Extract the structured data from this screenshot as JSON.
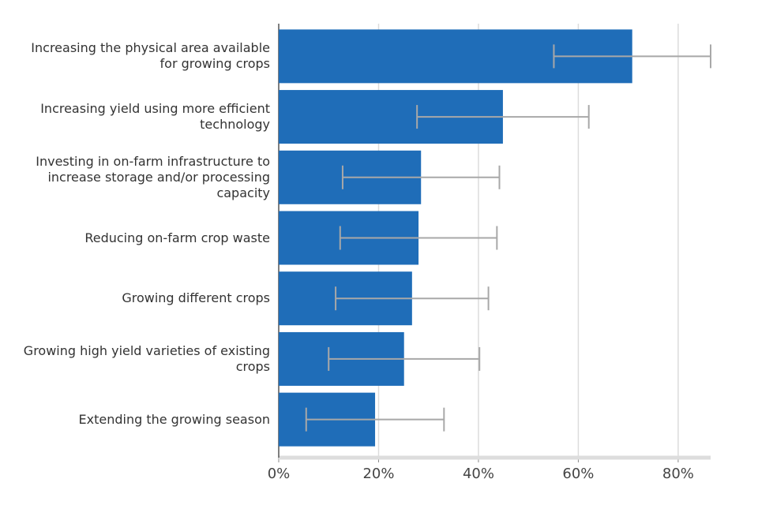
{
  "chart_data": {
    "type": "bar",
    "orientation": "horizontal",
    "categories": [
      "Increasing the physical area available for growing crops",
      "Increasing yield using more efficient technology",
      "Investing in on-farm infrastructure to increase storage and/or processing capacity",
      "Reducing on-farm crop waste",
      "Growing different crops",
      "Growing high yield varieties of existing crops",
      "Extending the growing season"
    ],
    "values": [
      70.8,
      44.9,
      28.5,
      28.0,
      26.7,
      25.1,
      19.3
    ],
    "error": [
      15.7,
      17.2,
      15.7,
      15.7,
      15.3,
      15.1,
      13.8
    ],
    "color": "#1f6db8",
    "error_color": "#a8a8a8",
    "xlim": [
      0,
      86.5
    ],
    "xticks": [
      {
        "value": 0,
        "label": "0%"
      },
      {
        "value": 20,
        "label": "20%"
      },
      {
        "value": 40,
        "label": "40%"
      },
      {
        "value": 60,
        "label": "60%"
      },
      {
        "value": 80,
        "label": "80%"
      }
    ],
    "grid": true
  }
}
